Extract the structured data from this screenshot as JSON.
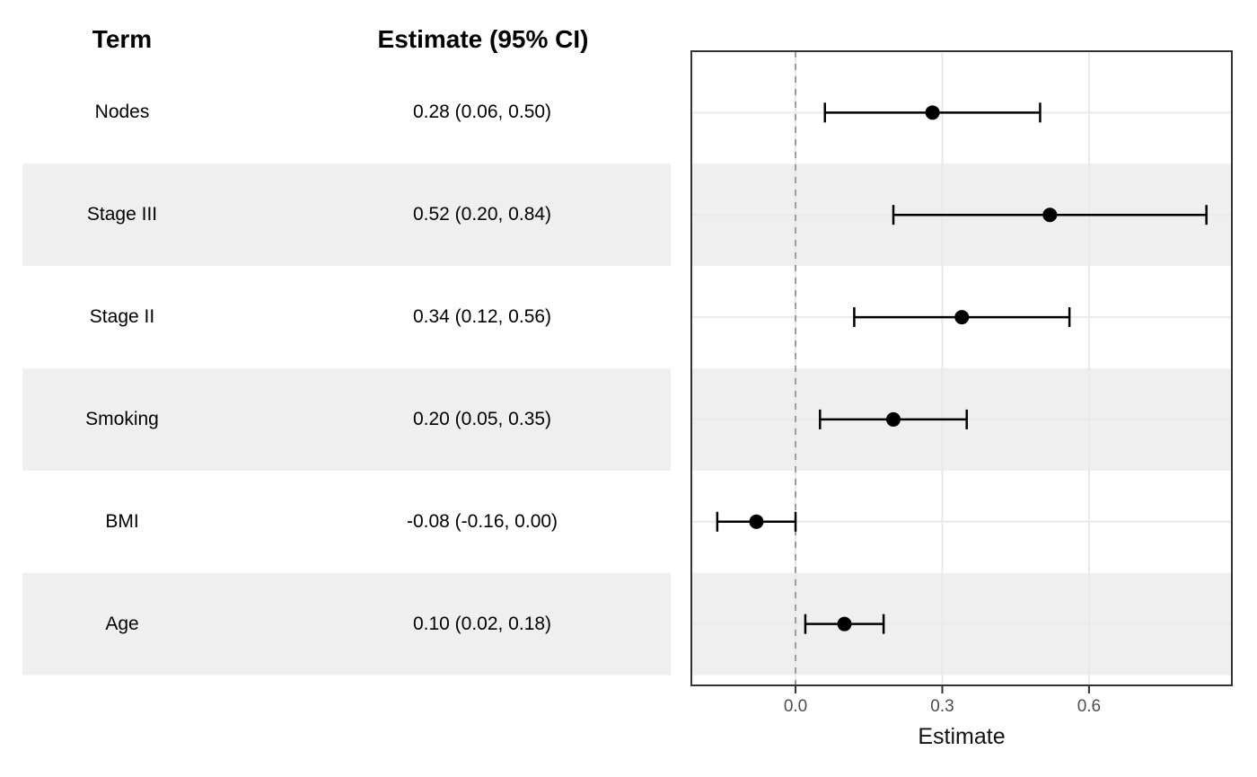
{
  "table": {
    "term_header": "Term",
    "estimate_header": "Estimate (95% CI)"
  },
  "chart_data": {
    "type": "forest",
    "title": "",
    "xlabel": "Estimate",
    "x_ticks": [
      0.0,
      0.3,
      0.6
    ],
    "x_tick_labels": [
      "0.0",
      "0.3",
      "0.6"
    ],
    "xlim": [
      -0.213,
      0.892
    ],
    "reference_line": 0.0,
    "grid": true,
    "legend": "none",
    "rows": [
      {
        "term": "Nodes",
        "ci_label": "0.28 (0.06, 0.50)",
        "estimate": 0.28,
        "lower": 0.06,
        "upper": 0.5,
        "striped": false
      },
      {
        "term": "Stage III",
        "ci_label": "0.52 (0.20, 0.84)",
        "estimate": 0.52,
        "lower": 0.2,
        "upper": 0.84,
        "striped": true
      },
      {
        "term": "Stage II",
        "ci_label": "0.34 (0.12, 0.56)",
        "estimate": 0.34,
        "lower": 0.12,
        "upper": 0.56,
        "striped": false
      },
      {
        "term": "Smoking",
        "ci_label": "0.20 (0.05, 0.35)",
        "estimate": 0.2,
        "lower": 0.05,
        "upper": 0.35,
        "striped": true
      },
      {
        "term": "BMI",
        "ci_label": "-0.08 (-0.16, 0.00)",
        "estimate": -0.08,
        "lower": -0.16,
        "upper": 0.0,
        "striped": false
      },
      {
        "term": "Age",
        "ci_label": "0.10 (0.02, 0.18)",
        "estimate": 0.1,
        "lower": 0.02,
        "upper": 0.18,
        "striped": true
      }
    ]
  },
  "colors": {
    "stripe": "#EFEFEF",
    "panel_border": "#333333",
    "gridline": "#E9E9E9",
    "reference_dash": "#9B9B9B",
    "marker": "#000000",
    "tick_mark": "#333333",
    "tick_label": "#4D4D4D",
    "axis_title": "#111111"
  }
}
